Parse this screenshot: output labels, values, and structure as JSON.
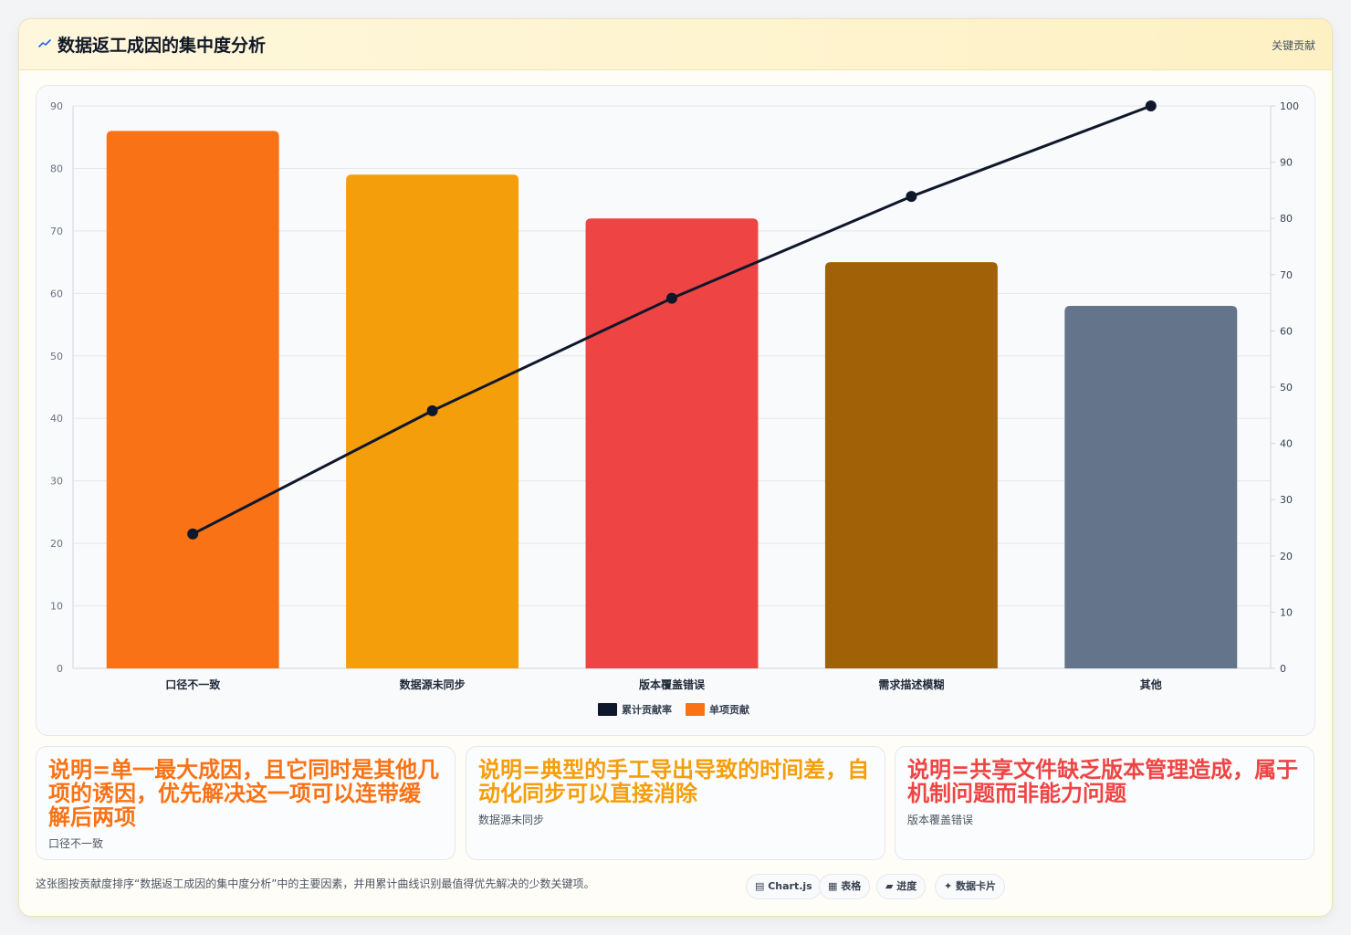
{
  "header": {
    "title": "数据返工成因的集中度分析",
    "badge": "关键贡献",
    "icon": "trend-icon"
  },
  "chart_data": {
    "type": "bar",
    "categories": [
      "口径不一致",
      "数据源未同步",
      "版本覆盖错误",
      "需求描述模糊",
      "其他"
    ],
    "series": [
      {
        "name": "单项贡献",
        "type": "bar",
        "axis": "left",
        "values": [
          86,
          79,
          72,
          65,
          58
        ],
        "colors": [
          "#f97316",
          "#f59e0b",
          "#ef4444",
          "#a16207",
          "#64748b"
        ]
      },
      {
        "name": "累计贡献率",
        "type": "line",
        "axis": "right",
        "values": [
          23.9,
          45.8,
          65.8,
          83.9,
          100
        ],
        "color": "#0f172a"
      }
    ],
    "ylim": [
      0,
      90
    ],
    "y2lim": [
      0,
      100
    ],
    "yticks": [
      0,
      10,
      20,
      30,
      40,
      50,
      60,
      70,
      80,
      90
    ],
    "y2ticks": [
      0,
      10,
      20,
      30,
      40,
      50,
      60,
      70,
      80,
      90,
      100
    ],
    "legend": {
      "placement": "bottom",
      "entries": [
        "累计贡献率",
        "单项贡献"
      ]
    },
    "grid": true
  },
  "notes": [
    {
      "text": "说明=单一最大成因，且它同时是其他几项的诱因，优先解决这一项可以连带缓解后两项",
      "label": "口径不一致",
      "color": "#f97316"
    },
    {
      "text": "说明=典型的手工导出导致的时间差，自动化同步可以直接消除",
      "label": "数据源未同步",
      "color": "#f59e0b"
    },
    {
      "text": "说明=共享文件缺乏版本管理造成，属于机制问题而非能力问题",
      "label": "版本覆盖错误",
      "color": "#ef4444"
    }
  ],
  "footer": {
    "description": "这张图按贡献度排序“数据返工成因的集中度分析”中的主要因素，并用累计曲线识别最值得优先解决的少数关键项。",
    "pills": [
      {
        "icon": "chart-icon",
        "label": "▤ Chart.js"
      },
      {
        "icon": "table-icon",
        "label": "▦ 表格"
      },
      {
        "icon": "progress-icon",
        "label": "▰ 进度"
      },
      {
        "icon": "sparkle-icon",
        "label": "✦ 数据卡片"
      }
    ]
  }
}
